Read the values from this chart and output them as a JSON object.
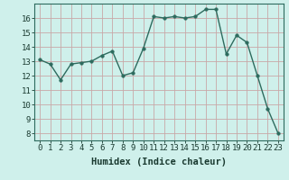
{
  "x": [
    0,
    1,
    2,
    3,
    4,
    5,
    6,
    7,
    8,
    9,
    10,
    11,
    12,
    13,
    14,
    15,
    16,
    17,
    18,
    19,
    20,
    21,
    22,
    23
  ],
  "y": [
    13.1,
    12.8,
    11.7,
    12.8,
    12.9,
    13.0,
    13.4,
    13.7,
    12.0,
    12.2,
    13.9,
    16.1,
    16.0,
    16.1,
    16.0,
    16.1,
    16.6,
    16.6,
    13.5,
    14.8,
    14.3,
    12.0,
    9.7,
    8.0
  ],
  "line_color": "#2d6b5e",
  "marker_color": "#2d6b5e",
  "background_color": "#cff0eb",
  "grid_color_major": "#c8a8a8",
  "grid_color_minor": "#c8a8a8",
  "xlabel": "Humidex (Indice chaleur)",
  "ylabel_ticks": [
    8,
    9,
    10,
    11,
    12,
    13,
    14,
    15,
    16
  ],
  "ylim": [
    7.5,
    17.0
  ],
  "xlim": [
    -0.5,
    23.5
  ],
  "tick_fontsize": 6.5,
  "xlabel_fontsize": 7.5,
  "marker_size": 2.5,
  "line_width": 1.0
}
